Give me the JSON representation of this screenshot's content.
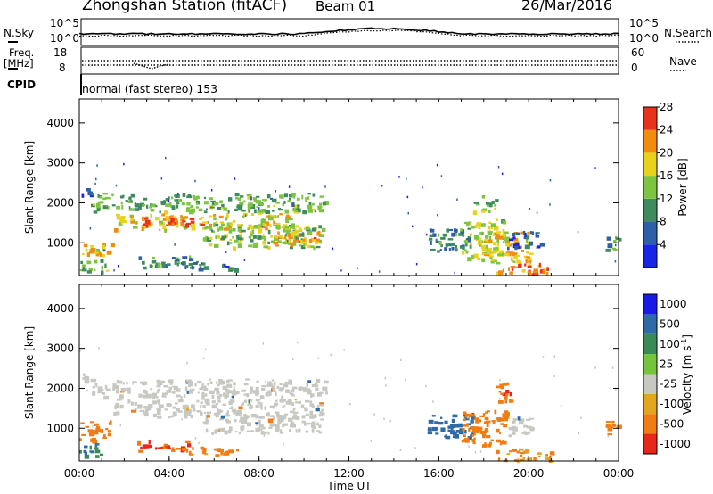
{
  "header": {
    "station": "Zhongshan Station (fitACF)",
    "beam": "Beam 01",
    "date": "26/Mar/2016"
  },
  "sky_panel": {
    "left_label": "N.Sky",
    "right_label": "N.Search",
    "left_ticks": [
      "10^5",
      "10^0"
    ],
    "right_ticks": [
      "10^5",
      "10^0"
    ]
  },
  "freq_panel": {
    "left_label_1": "Freq.",
    "left_label_2": "[MHz]",
    "right_label": "Nave",
    "left_ticks": [
      "18",
      "8"
    ],
    "right_ticks": [
      "60",
      "0"
    ]
  },
  "cpid": {
    "label": "CPID",
    "mode_text": "normal (fast stereo) 153"
  },
  "colors": {
    "power_scale": [
      "#1a24e6",
      "#2e5fa8",
      "#3f8a5e",
      "#7dc441",
      "#e8d21a",
      "#f28c0f",
      "#e8321a"
    ],
    "velocity_scale": [
      "#1a1ae6",
      "#2e6aa8",
      "#3a8a55",
      "#74c43c",
      "#c8c8c2",
      "#e3a41e",
      "#f07c14",
      "#e8261a"
    ]
  },
  "chart_data": [
    {
      "type": "heatmap",
      "title": "",
      "ylabel": "Slant Range [km]",
      "xlabel": "",
      "x_range_hours": [
        0,
        24
      ],
      "ylim": [
        180,
        4600
      ],
      "yticks": [
        "1000",
        "2000",
        "3000",
        "4000"
      ],
      "grid": false,
      "colorbar": {
        "label": "Power [dB]",
        "min": 0,
        "max": 32,
        "tick_labels": [
          "4",
          "8",
          "12",
          "16",
          "20",
          "24",
          "28"
        ]
      },
      "regions": [
        {
          "t": [
            0.1,
            0.5
          ],
          "r": [
            2200,
            2450
          ],
          "v": 4
        },
        {
          "t": [
            0.5,
            11.0
          ],
          "r": [
            1800,
            2250
          ],
          "v": 14
        },
        {
          "t": [
            1.5,
            9.5
          ],
          "r": [
            1350,
            1750
          ],
          "v": 20
        },
        {
          "t": [
            2.5,
            5.5
          ],
          "r": [
            1450,
            1650
          ],
          "v": 26
        },
        {
          "t": [
            5.5,
            10.8
          ],
          "r": [
            900,
            1500
          ],
          "v": 16
        },
        {
          "t": [
            8.5,
            10.8
          ],
          "r": [
            950,
            1300
          ],
          "v": 23
        },
        {
          "t": [
            0.0,
            1.5
          ],
          "r": [
            650,
            1000
          ],
          "v": 22
        },
        {
          "t": [
            0.0,
            1.2
          ],
          "r": [
            300,
            600
          ],
          "v": 14
        },
        {
          "t": [
            2.5,
            5.0
          ],
          "r": [
            400,
            700
          ],
          "v": 12
        },
        {
          "t": [
            4.5,
            7.0
          ],
          "r": [
            350,
            550
          ],
          "v": 8
        },
        {
          "t": [
            15.5,
            17.5
          ],
          "r": [
            800,
            1400
          ],
          "v": 10
        },
        {
          "t": [
            17.0,
            19.0
          ],
          "r": [
            600,
            1600
          ],
          "v": 18
        },
        {
          "t": [
            18.0,
            20.0
          ],
          "r": [
            500,
            1300
          ],
          "v": 22
        },
        {
          "t": [
            19.0,
            20.5
          ],
          "r": [
            900,
            1300
          ],
          "v": 6
        },
        {
          "t": [
            18.5,
            21.0
          ],
          "r": [
            200,
            500
          ],
          "v": 27
        },
        {
          "t": [
            23.4,
            24.0
          ],
          "r": [
            800,
            1200
          ],
          "v": 12
        },
        {
          "t": [
            17.5,
            18.6
          ],
          "r": [
            1800,
            2200
          ],
          "v": 14
        }
      ]
    },
    {
      "type": "heatmap",
      "title": "",
      "ylabel": "Slant Range [km]",
      "xlabel": "Time UT",
      "x_range_hours": [
        0,
        24
      ],
      "xticks": [
        "00:00",
        "04:00",
        "08:00",
        "12:00",
        "16:00",
        "20:00",
        "00:00"
      ],
      "ylim": [
        180,
        4600
      ],
      "yticks": [
        "1000",
        "2000",
        "3000",
        "4000"
      ],
      "grid": false,
      "colorbar": {
        "label": "Velocity [m s^-1]",
        "tick_labels": [
          "1000",
          "500",
          "100",
          "25",
          "-25",
          "-100",
          "-500",
          "-1000"
        ]
      },
      "regions": [
        {
          "t": [
            0.1,
            0.5
          ],
          "r": [
            2200,
            2450
          ],
          "v": 0
        },
        {
          "t": [
            0.5,
            11.0
          ],
          "r": [
            1800,
            2250
          ],
          "v": 0
        },
        {
          "t": [
            1.5,
            10.8
          ],
          "r": [
            1300,
            1750
          ],
          "v": 0
        },
        {
          "t": [
            5.5,
            10.8
          ],
          "r": [
            900,
            1400
          ],
          "v": 0
        },
        {
          "t": [
            0.0,
            1.5
          ],
          "r": [
            650,
            1200
          ],
          "v": -300
        },
        {
          "t": [
            0.0,
            1.0
          ],
          "r": [
            300,
            650
          ],
          "v": 80
        },
        {
          "t": [
            2.5,
            5.0
          ],
          "r": [
            450,
            700
          ],
          "v": -500
        },
        {
          "t": [
            4.5,
            7.0
          ],
          "r": [
            350,
            550
          ],
          "v": -150
        },
        {
          "t": [
            15.5,
            17.5
          ],
          "r": [
            800,
            1400
          ],
          "v": 300
        },
        {
          "t": [
            17.0,
            19.0
          ],
          "r": [
            600,
            1500
          ],
          "v": -200
        },
        {
          "t": [
            19.0,
            20.2
          ],
          "r": [
            800,
            1300
          ],
          "v": 0
        },
        {
          "t": [
            18.5,
            21.0
          ],
          "r": [
            200,
            500
          ],
          "v": -120
        },
        {
          "t": [
            23.4,
            24.0
          ],
          "r": [
            800,
            1200
          ],
          "v": -200
        },
        {
          "t": [
            18.5,
            19.2
          ],
          "r": [
            1600,
            2200
          ],
          "v": -400
        }
      ]
    }
  ]
}
